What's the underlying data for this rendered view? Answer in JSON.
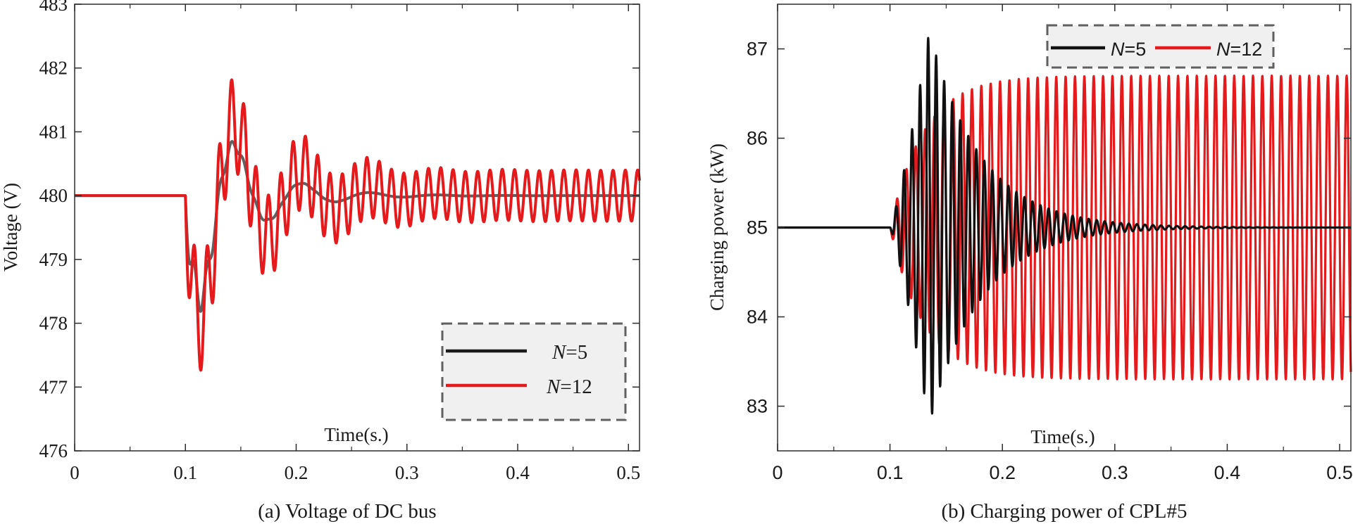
{
  "chart_data": [
    {
      "id": "a",
      "type": "line",
      "caption": "(a) Voltage of DC bus",
      "xlabel": "Time(s.)",
      "ylabel": "Voltage (V)",
      "xlim": [
        0,
        0.51
      ],
      "ylim": [
        476,
        483
      ],
      "xticks": [
        0,
        0.1,
        0.2,
        0.3,
        0.4,
        0.5
      ],
      "xtick_labels": [
        "0",
        "0.1",
        "0.2",
        "0.3",
        "0.4",
        "0.5"
      ],
      "yticks": [
        476,
        477,
        478,
        479,
        480,
        481,
        482,
        483
      ],
      "ytick_labels": [
        "476",
        "477",
        "478",
        "479",
        "480",
        "481",
        "482",
        "483"
      ],
      "grid": false,
      "legend_position": "bottom-right",
      "series": [
        {
          "name": "N=5",
          "name_italic": "N",
          "name_rest": "=5",
          "color": "#1a1a1a",
          "legend_color": "#1a1a1a",
          "draw_color": "#606060",
          "model": {
            "base": 480,
            "t_start": 0.1,
            "t_end": 0.51,
            "slow": {
              "amplitude": -2.2,
              "frequency_hz": 16.4,
              "decay": 23
            },
            "fast": {
              "amplitude": -0.4,
              "frequency_hz": 90,
              "decay": 40
            }
          }
        },
        {
          "name": "N=12",
          "name_italic": "N",
          "name_rest": "=12",
          "color": "#e41a1c",
          "legend_color": "#e41a1c",
          "draw_color": "#e41a1c",
          "model": {
            "base": 480,
            "t_start": 0.1,
            "t_end": 0.51,
            "slow": {
              "amplitude": -2.5,
              "frequency_hz": 16.4,
              "decay": 18
            },
            "fast": {
              "amplitude": -0.85,
              "frequency_hz": 90,
              "decay": 3.5,
              "floor_amplitude": 0.4
            }
          }
        }
      ]
    },
    {
      "id": "b",
      "type": "line",
      "caption": "(b) Charging power of CPL#5",
      "xlabel": "Time(s.)",
      "ylabel": "Charging power (kW)",
      "xlim": [
        0,
        0.51
      ],
      "ylim": [
        82.5,
        87.5
      ],
      "xticks": [
        0,
        0.1,
        0.2,
        0.3,
        0.4,
        0.5
      ],
      "xtick_labels": [
        "0",
        "0.1",
        "0.2",
        "0.3",
        "0.4",
        "0.5"
      ],
      "yticks": [
        83,
        84,
        85,
        86,
        87
      ],
      "ytick_labels": [
        "83",
        "84",
        "85",
        "86",
        "87"
      ],
      "grid": false,
      "legend_position": "top-right",
      "series": [
        {
          "name": "N=12",
          "name_italic": "N",
          "name_rest": "=12",
          "color": "#e41a1c",
          "legend_color": "#e41a1c",
          "draw_color": "#e41a1c",
          "model": {
            "base": 85,
            "t_start": 0.1,
            "t_end": 0.51,
            "burst": {
              "amplitude": 1.7,
              "frequency_hz": 120,
              "rise": 0.03
            }
          }
        },
        {
          "name": "N=5",
          "name_italic": "N",
          "name_rest": "=5",
          "color": "#111111",
          "legend_color": "#111111",
          "draw_color": "#111111",
          "model": {
            "base": 85,
            "t_start": 0.1,
            "t_end": 0.51,
            "burst": {
              "amplitude": 2.2,
              "frequency_hz": 140,
              "peak_time": 0.135,
              "rise": 0.025,
              "decay": 22
            }
          }
        }
      ]
    }
  ]
}
